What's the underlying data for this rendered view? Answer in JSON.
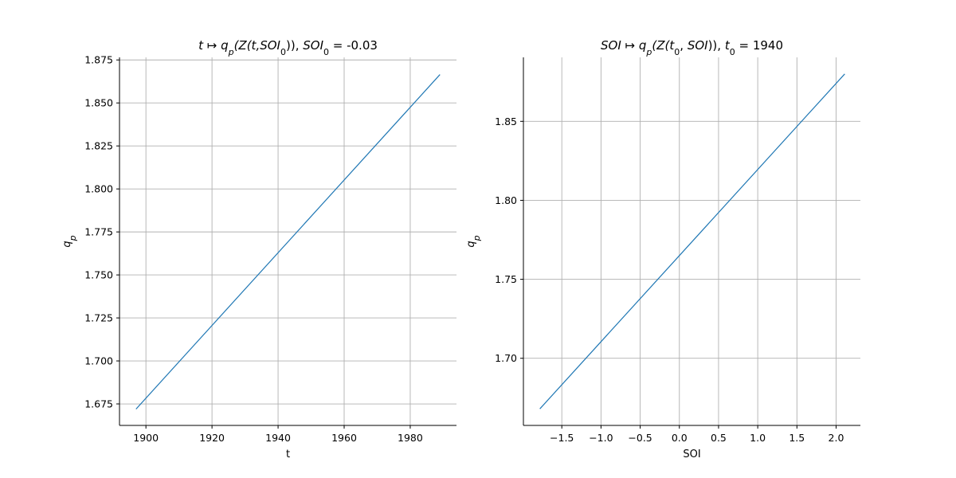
{
  "chart_data": [
    {
      "type": "line",
      "title_parts": [
        "t",
        "↦",
        "q",
        "p",
        "(Z(t,",
        "SOI",
        "0",
        ")), ",
        "SOI",
        "0",
        " = -0.03"
      ],
      "xlabel": "t",
      "ylabel_main": "q",
      "ylabel_sub": "p",
      "xlim": [
        1892,
        1994
      ],
      "ylim": [
        1.6625,
        1.8765
      ],
      "xticks": [
        1900,
        1920,
        1940,
        1960,
        1980
      ],
      "xtick_labels": [
        "1900",
        "1920",
        "1940",
        "1960",
        "1980"
      ],
      "yticks": [
        1.675,
        1.7,
        1.725,
        1.75,
        1.775,
        1.8,
        1.825,
        1.85,
        1.875
      ],
      "ytick_labels": [
        "1.675",
        "1.700",
        "1.725",
        "1.750",
        "1.775",
        "1.800",
        "1.825",
        "1.850",
        "1.875"
      ],
      "grid": true,
      "series": [
        {
          "x": [
            1897,
            1989
          ],
          "y": [
            1.672,
            1.8665
          ],
          "color": "#1f77b4"
        }
      ]
    },
    {
      "type": "line",
      "title_parts": [
        "SOI",
        "↦",
        "q",
        "p",
        "(Z(t",
        "0",
        ", ",
        "SOI",
        ")), ",
        "t",
        "0",
        " = 1940"
      ],
      "xlabel": "SOI",
      "ylabel_main": "q",
      "ylabel_sub": "p",
      "xlim": [
        -1.99,
        2.31
      ],
      "ylim": [
        1.6575,
        1.8905
      ],
      "xticks": [
        -1.5,
        -1.0,
        -0.5,
        0.0,
        0.5,
        1.0,
        1.5,
        2.0
      ],
      "xtick_labels": [
        "−1.5",
        "−1.0",
        "−0.5",
        "0.0",
        "0.5",
        "1.0",
        "1.5",
        "2.0"
      ],
      "yticks": [
        1.7,
        1.75,
        1.8,
        1.85
      ],
      "ytick_labels": [
        "1.70",
        "1.75",
        "1.80",
        "1.85"
      ],
      "grid": true,
      "series": [
        {
          "x": [
            -1.78,
            2.11
          ],
          "y": [
            1.668,
            1.88
          ],
          "color": "#1f77b4"
        }
      ]
    }
  ]
}
